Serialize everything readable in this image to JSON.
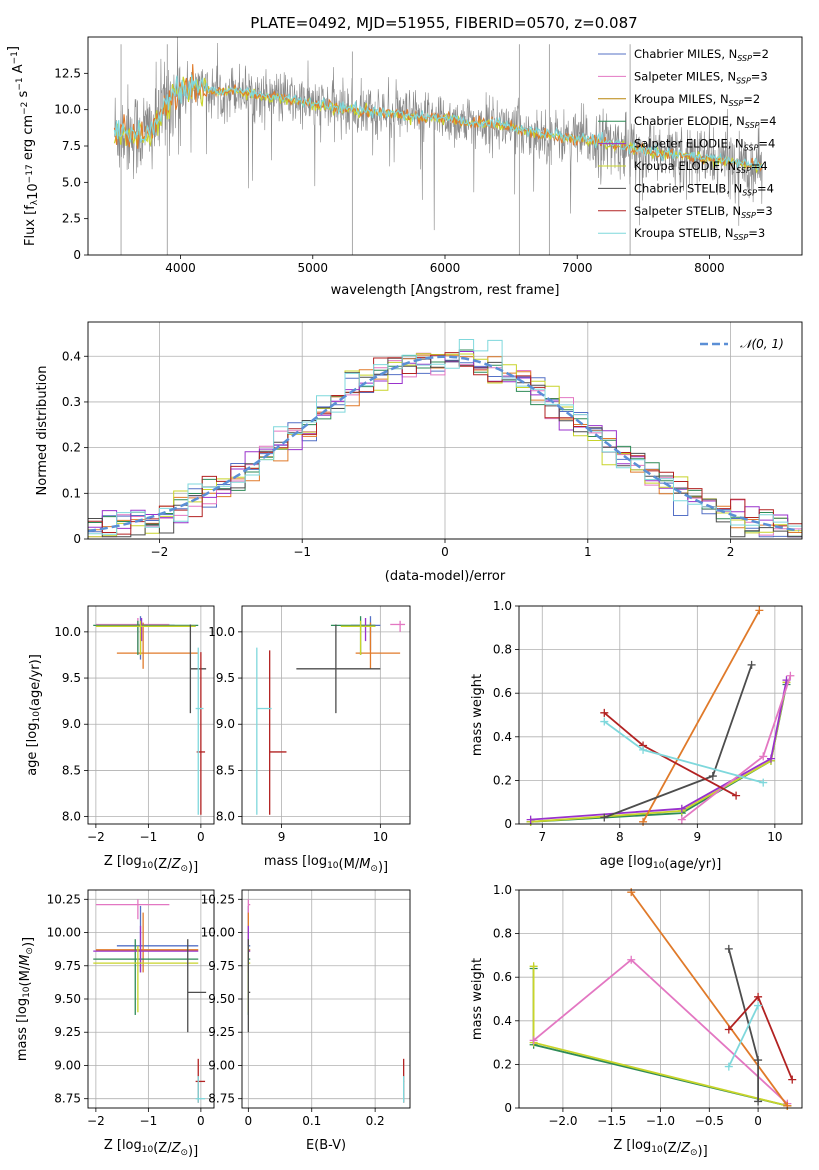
{
  "figure_title": "PLATE=0492, MJD=51955, FIBERID=0570, z=0.087",
  "colors": {
    "chabrier_miles": "#5470c6",
    "salpeter_miles": "#e377c2",
    "kroupa_miles": "#b8860b",
    "chabrier_elodie": "#2e8b57",
    "salpeter_elodie": "#9932cc",
    "kroupa_elodie": "#c8d42a",
    "chabrier_stelib": "#4d4d4d",
    "salpeter_stelib": "#b22222",
    "kroupa_stelib": "#7fd8dc",
    "orange": "#e07a2a",
    "data_grey": "#888888",
    "normal_curve": "#5b8fd6"
  },
  "chart_data": [
    {
      "id": "spectrum",
      "type": "line",
      "title": "PLATE=0492, MJD=51955, FIBERID=0570, z=0.087",
      "xlabel": "wavelength [Angstrom, rest frame]",
      "ylabel": "Flux [f_λ10^-17 erg cm^-2 s^-1 A^-1]",
      "xlim": [
        3300,
        8700
      ],
      "ylim": [
        0,
        15
      ],
      "xticks": [
        4000,
        5000,
        6000,
        7000,
        8000
      ],
      "yticks": [
        0.0,
        2.5,
        5.0,
        7.5,
        10.0,
        12.5
      ],
      "legend_position": "top-right",
      "legend": [
        {
          "label": "Chabrier MILES, N",
          "sub": "SSP",
          "tail": "=2",
          "color": "#5470c6"
        },
        {
          "label": "Salpeter MILES, N",
          "sub": "SSP",
          "tail": "=3",
          "color": "#e377c2"
        },
        {
          "label": "Kroupa MILES, N",
          "sub": "SSP",
          "tail": "=2",
          "color": "#b8860b"
        },
        {
          "label": "Chabrier ELODIE, N",
          "sub": "SSP",
          "tail": "=4",
          "color": "#2e8b57"
        },
        {
          "label": "Salpeter ELODIE, N",
          "sub": "SSP",
          "tail": "=4",
          "color": "#9932cc"
        },
        {
          "label": "Kroupa ELODIE, N",
          "sub": "SSP",
          "tail": "=4",
          "color": "#c8d42a"
        },
        {
          "label": "Chabrier STELIB, N",
          "sub": "SSP",
          "tail": "=4",
          "color": "#4d4d4d"
        },
        {
          "label": "Salpeter STELIB, N",
          "sub": "SSP",
          "tail": "=3",
          "color": "#b22222"
        },
        {
          "label": "Kroupa STELIB, N",
          "sub": "SSP",
          "tail": "=3",
          "color": "#7fd8dc"
        }
      ],
      "continuum": {
        "x": [
          3500,
          3600,
          3700,
          3800,
          3900,
          4000,
          4100,
          4200,
          4300,
          4400,
          4500,
          4600,
          4700,
          4800,
          4900,
          5000,
          5200,
          5400,
          5600,
          5800,
          6000,
          6200,
          6400,
          6600,
          6800,
          7000,
          7200,
          7400,
          7600,
          7800,
          8000,
          8200,
          8400
        ],
        "y": [
          8.6,
          8.5,
          8.3,
          8.8,
          10.6,
          11.2,
          11.6,
          11.4,
          11.1,
          11.4,
          11.2,
          11.0,
          10.9,
          10.8,
          10.5,
          10.4,
          10.1,
          9.9,
          9.7,
          9.5,
          9.4,
          9.1,
          9.0,
          8.6,
          8.2,
          8.0,
          7.7,
          7.4,
          7.0,
          6.8,
          6.6,
          6.4,
          6.1
        ]
      },
      "data_spikes": {
        "x": [
          3550,
          3900,
          5300,
          6563,
          6790,
          7400
        ],
        "y": [
          14.5,
          14.5,
          14.0,
          14.5,
          14.5,
          14.5
        ]
      }
    },
    {
      "id": "residuals",
      "type": "histogram",
      "xlabel": "(data-model)/error",
      "ylabel": "Normed distribution",
      "xlim": [
        -2.5,
        2.5
      ],
      "ylim": [
        0,
        0.475
      ],
      "xticks": [
        -2,
        -1,
        0,
        1,
        2
      ],
      "yticks": [
        0.0,
        0.1,
        0.2,
        0.3,
        0.4
      ],
      "grid": true,
      "legend_position": "top-right",
      "legend": [
        {
          "label": "𝒩(0, 1)",
          "color": "#5b8fd6",
          "style": "dashed"
        }
      ],
      "bin_width": 0.1,
      "bin_start": -2.5
    },
    {
      "id": "age_vs_Z",
      "type": "errorbar",
      "xlabel": "Z [log10(Z/Z⊙)]",
      "ylabel": "age [log10(age/yr)]",
      "xlim": [
        -2.15,
        0.25
      ],
      "ylim": [
        7.92,
        10.28
      ],
      "xticks": [
        -2,
        -1,
        0
      ],
      "yticks": [
        8.0,
        8.5,
        9.0,
        9.5,
        10.0
      ],
      "grid": true,
      "points": [
        {
          "x": -1.15,
          "y": 10.07,
          "xl": -2.0,
          "xh": -0.5,
          "yl": 9.7,
          "yh": 10.17,
          "color": "#5470c6"
        },
        {
          "x": -1.2,
          "y": 10.08,
          "xl": -2.0,
          "xh": -0.6,
          "yl": 9.8,
          "yh": 10.15,
          "color": "#e377c2"
        },
        {
          "x": -1.1,
          "y": 9.77,
          "xl": -1.6,
          "xh": -0.05,
          "yl": 9.6,
          "yh": 10.1,
          "color": "#e07a2a"
        },
        {
          "x": -1.2,
          "y": 10.07,
          "xl": -2.05,
          "xh": -0.05,
          "yl": 9.75,
          "yh": 10.12,
          "color": "#2e8b57"
        },
        {
          "x": -1.13,
          "y": 10.06,
          "xl": -1.9,
          "xh": -0.1,
          "yl": 9.9,
          "yh": 10.15,
          "color": "#9932cc"
        },
        {
          "x": -1.15,
          "y": 10.06,
          "xl": -2.0,
          "xh": -0.1,
          "yl": 9.75,
          "yh": 10.12,
          "color": "#c8d42a"
        },
        {
          "x": -0.2,
          "y": 9.6,
          "xl": -0.2,
          "xh": 0.1,
          "yl": 9.12,
          "yh": 10.08,
          "color": "#4d4d4d"
        },
        {
          "x": 0.0,
          "y": 8.7,
          "xl": -0.08,
          "xh": 0.08,
          "yl": 8.02,
          "yh": 9.78,
          "color": "#b22222"
        },
        {
          "x": -0.05,
          "y": 9.17,
          "xl": -0.1,
          "xh": 0.05,
          "yl": 8.02,
          "yh": 9.83,
          "color": "#7fd8dc"
        }
      ]
    },
    {
      "id": "age_vs_mass",
      "type": "errorbar",
      "xlabel": "mass [log10(M/M⊙)]",
      "ylabel": "",
      "xlim": [
        8.6,
        10.3
      ],
      "ylim": [
        7.92,
        10.28
      ],
      "xticks": [
        9,
        10
      ],
      "yticks": [
        8.0,
        8.5,
        9.0,
        9.5,
        10.0
      ],
      "grid": true,
      "points": [
        {
          "x": 9.9,
          "y": 10.07,
          "xl": 9.7,
          "xh": 10.0,
          "yl": 9.8,
          "yh": 10.17,
          "color": "#5470c6"
        },
        {
          "x": 10.2,
          "y": 10.08,
          "xl": 10.1,
          "xh": 10.25,
          "yl": 10.0,
          "yh": 10.12,
          "color": "#e377c2"
        },
        {
          "x": 9.9,
          "y": 9.77,
          "xl": 9.75,
          "xh": 10.2,
          "yl": 9.6,
          "yh": 10.1,
          "color": "#e07a2a"
        },
        {
          "x": 9.8,
          "y": 10.07,
          "xl": 9.5,
          "xh": 9.95,
          "yl": 9.75,
          "yh": 10.17,
          "color": "#2e8b57"
        },
        {
          "x": 9.85,
          "y": 10.06,
          "xl": 9.7,
          "xh": 9.95,
          "yl": 9.9,
          "yh": 10.15,
          "color": "#9932cc"
        },
        {
          "x": 9.8,
          "y": 10.06,
          "xl": 9.6,
          "xh": 9.95,
          "yl": 9.75,
          "yh": 10.12,
          "color": "#c8d42a"
        },
        {
          "x": 9.55,
          "y": 9.6,
          "xl": 9.15,
          "xh": 10.0,
          "yl": 9.12,
          "yh": 10.08,
          "color": "#4d4d4d"
        },
        {
          "x": 8.88,
          "y": 8.7,
          "xl": 8.88,
          "xh": 9.05,
          "yl": 8.02,
          "yh": 9.8,
          "color": "#b22222"
        },
        {
          "x": 8.75,
          "y": 9.17,
          "xl": 8.75,
          "xh": 8.9,
          "yl": 8.02,
          "yh": 9.83,
          "color": "#7fd8dc"
        }
      ]
    },
    {
      "id": "weight_vs_age",
      "type": "line",
      "xlabel": "age [log10(age/yr)]",
      "ylabel": "mass weight",
      "xlim": [
        6.7,
        10.35
      ],
      "ylim": [
        0,
        1.0
      ],
      "xticks": [
        7,
        8,
        9,
        10
      ],
      "yticks": [
        0.0,
        0.2,
        0.4,
        0.6,
        0.8,
        1.0
      ],
      "grid": true,
      "series": [
        {
          "color": "#2e8b57",
          "x": [
            6.85,
            8.8,
            9.95,
            10.15
          ],
          "y": [
            0.01,
            0.05,
            0.29,
            0.64
          ]
        },
        {
          "color": "#c8d42a",
          "x": [
            6.85,
            8.8,
            9.95,
            10.15
          ],
          "y": [
            0.01,
            0.06,
            0.29,
            0.65
          ]
        },
        {
          "color": "#9932cc",
          "x": [
            6.85,
            8.8,
            9.95,
            10.15
          ],
          "y": [
            0.02,
            0.07,
            0.3,
            0.66
          ]
        },
        {
          "color": "#e377c2",
          "x": [
            8.8,
            9.85,
            10.2
          ],
          "y": [
            0.02,
            0.31,
            0.68
          ]
        },
        {
          "color": "#e07a2a",
          "x": [
            8.3,
            9.8
          ],
          "y": [
            0.01,
            0.98
          ]
        },
        {
          "color": "#4d4d4d",
          "x": [
            7.8,
            9.2,
            9.7
          ],
          "y": [
            0.03,
            0.22,
            0.73
          ]
        },
        {
          "color": "#b22222",
          "x": [
            7.8,
            8.3,
            9.5
          ],
          "y": [
            0.51,
            0.36,
            0.13
          ]
        },
        {
          "color": "#7fd8dc",
          "x": [
            7.8,
            8.3,
            9.85
          ],
          "y": [
            0.47,
            0.34,
            0.19
          ]
        }
      ]
    },
    {
      "id": "mass_vs_Z",
      "type": "errorbar",
      "xlabel": "Z [log10(Z/Z⊙)]",
      "ylabel": "mass [log10(M/M⊙)]",
      "xlim": [
        -2.15,
        0.25
      ],
      "ylim": [
        8.68,
        10.32
      ],
      "xticks": [
        -2,
        -1,
        0
      ],
      "yticks": [
        8.75,
        9.0,
        9.25,
        9.5,
        9.75,
        10.0,
        10.25
      ],
      "grid": true,
      "points": [
        {
          "x": -1.15,
          "y": 9.9,
          "xl": -1.6,
          "xh": -0.05,
          "yl": 9.7,
          "yh": 10.2,
          "color": "#5470c6"
        },
        {
          "x": -1.2,
          "y": 10.21,
          "xl": -2.0,
          "xh": -0.6,
          "yl": 10.1,
          "yh": 10.25,
          "color": "#e377c2"
        },
        {
          "x": -1.1,
          "y": 9.87,
          "xl": -2.0,
          "xh": -0.05,
          "yl": 9.7,
          "yh": 10.15,
          "color": "#e07a2a"
        },
        {
          "x": -1.25,
          "y": 9.8,
          "xl": -2.05,
          "xh": -0.05,
          "yl": 9.38,
          "yh": 9.95,
          "color": "#2e8b57"
        },
        {
          "x": -1.15,
          "y": 9.86,
          "xl": -2.05,
          "xh": -0.05,
          "yl": 9.7,
          "yh": 10.05,
          "color": "#9932cc"
        },
        {
          "x": -1.2,
          "y": 9.77,
          "xl": -2.05,
          "xh": -0.05,
          "yl": 9.4,
          "yh": 9.9,
          "color": "#c8d42a"
        },
        {
          "x": -0.25,
          "y": 9.55,
          "xl": -0.25,
          "xh": 0.1,
          "yl": 9.25,
          "yh": 9.95,
          "color": "#4d4d4d"
        },
        {
          "x": -0.05,
          "y": 8.88,
          "xl": -0.1,
          "xh": 0.08,
          "yl": 8.72,
          "yh": 9.05,
          "color": "#b22222"
        },
        {
          "x": -0.05,
          "y": 8.75,
          "xl": -0.1,
          "xh": 0.08,
          "yl": 8.72,
          "yh": 8.92,
          "color": "#7fd8dc"
        }
      ]
    },
    {
      "id": "mass_vs_ebv",
      "type": "errorbar",
      "xlabel": "E(B-V)",
      "ylabel": "",
      "xlim": [
        -0.01,
        0.255
      ],
      "ylim": [
        8.68,
        10.32
      ],
      "xticks": [
        0.0,
        0.1,
        0.2
      ],
      "yticks": [
        8.75,
        9.0,
        9.25,
        9.5,
        9.75,
        10.0,
        10.25
      ],
      "grid": true,
      "points": [
        {
          "x": 0.0,
          "y": 9.9,
          "xl": 0.0,
          "xh": 0.003,
          "yl": 9.7,
          "yh": 10.2,
          "color": "#5470c6"
        },
        {
          "x": 0.0,
          "y": 10.21,
          "xl": 0.0,
          "xh": 0.003,
          "yl": 10.1,
          "yh": 10.25,
          "color": "#e377c2"
        },
        {
          "x": 0.0,
          "y": 9.87,
          "xl": 0.0,
          "xh": 0.003,
          "yl": 9.7,
          "yh": 10.15,
          "color": "#e07a2a"
        },
        {
          "x": 0.0,
          "y": 9.8,
          "xl": 0.0,
          "xh": 0.003,
          "yl": 9.38,
          "yh": 9.95,
          "color": "#2e8b57"
        },
        {
          "x": 0.0,
          "y": 9.86,
          "xl": 0.0,
          "xh": 0.003,
          "yl": 9.7,
          "yh": 10.05,
          "color": "#9932cc"
        },
        {
          "x": 0.0,
          "y": 9.77,
          "xl": 0.0,
          "xh": 0.003,
          "yl": 9.4,
          "yh": 9.9,
          "color": "#c8d42a"
        },
        {
          "x": 0.0,
          "y": 9.55,
          "xl": 0.0,
          "xh": 0.003,
          "yl": 9.25,
          "yh": 9.95,
          "color": "#4d4d4d"
        },
        {
          "x": 0.245,
          "y": 8.88,
          "xl": 0.245,
          "xh": 0.246,
          "yl": 8.72,
          "yh": 9.05,
          "color": "#b22222"
        },
        {
          "x": 0.245,
          "y": 8.75,
          "xl": 0.245,
          "xh": 0.246,
          "yl": 8.72,
          "yh": 8.92,
          "color": "#7fd8dc"
        }
      ]
    },
    {
      "id": "weight_vs_Z",
      "type": "line",
      "xlabel": "Z [log10(Z/Z⊙)]",
      "ylabel": "mass weight",
      "xlim": [
        -2.45,
        0.45
      ],
      "ylim": [
        0,
        1.0
      ],
      "xticks": [
        -2.0,
        -1.5,
        -1.0,
        -0.5,
        0.0
      ],
      "yticks": [
        0.0,
        0.2,
        0.4,
        0.6,
        0.8,
        1.0
      ],
      "grid": true,
      "series": [
        {
          "color": "#2e8b57",
          "x": [
            -2.3,
            -2.3,
            0.3
          ],
          "y": [
            0.64,
            0.29,
            0.01
          ]
        },
        {
          "color": "#c8d42a",
          "x": [
            -2.3,
            -2.3,
            0.3
          ],
          "y": [
            0.65,
            0.3,
            0.01
          ]
        },
        {
          "color": "#e377c2",
          "x": [
            -2.3,
            -1.3,
            0.3
          ],
          "y": [
            0.31,
            0.68,
            0.02
          ]
        },
        {
          "color": "#e07a2a",
          "x": [
            -1.3,
            0.3
          ],
          "y": [
            0.99,
            0.01
          ]
        },
        {
          "color": "#4d4d4d",
          "x": [
            -0.3,
            0.0,
            0.0
          ],
          "y": [
            0.73,
            0.22,
            0.03
          ]
        },
        {
          "color": "#b22222",
          "x": [
            0.35,
            0.0,
            -0.3
          ],
          "y": [
            0.13,
            0.51,
            0.36
          ]
        },
        {
          "color": "#7fd8dc",
          "x": [
            0.0,
            -0.3
          ],
          "y": [
            0.47,
            0.19
          ]
        }
      ]
    }
  ]
}
